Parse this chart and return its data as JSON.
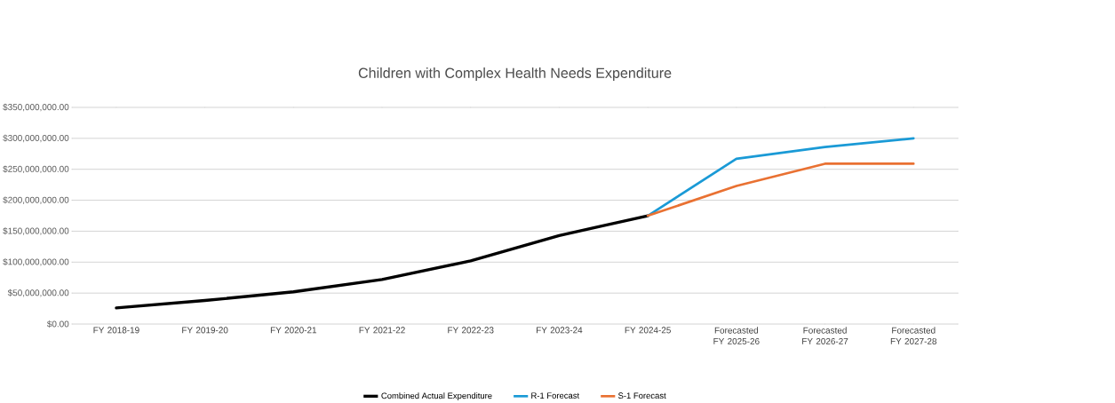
{
  "chart_data": {
    "type": "line",
    "title": "Children with Complex Health Needs Expenditure",
    "categories": [
      "FY 2018-19",
      "FY 2019-20",
      "FY 2020-21",
      "FY 2021-22",
      "FY 2022-23",
      "FY 2023-24",
      "FY 2024-25",
      "Forecasted FY 2025-26",
      "Forecasted FY 2026-27",
      "Forecasted FY 2027-28"
    ],
    "series": [
      {
        "name": "Combined Actual Expenditure",
        "color": "#000000",
        "values": [
          26000000,
          38000000,
          52000000,
          72000000,
          102000000,
          143000000,
          175000000,
          null,
          null,
          null
        ]
      },
      {
        "name": "R-1 Forecast",
        "color": "#1a9ad6",
        "values": [
          null,
          null,
          null,
          null,
          null,
          null,
          175000000,
          267000000,
          286000000,
          300000000
        ]
      },
      {
        "name": "S-1 Forecast",
        "color": "#e97132",
        "values": [
          null,
          null,
          null,
          null,
          null,
          null,
          175000000,
          223000000,
          259000000,
          259000000
        ]
      }
    ],
    "ylim": [
      0,
      350000000
    ],
    "yticks": [
      {
        "value": 0,
        "label": "$0.00"
      },
      {
        "value": 50000000,
        "label": "$50,000,000.00"
      },
      {
        "value": 100000000,
        "label": "$100,000,000.00"
      },
      {
        "value": 150000000,
        "label": "$150,000,000.00"
      },
      {
        "value": 200000000,
        "label": "$200,000,000.00"
      },
      {
        "value": 250000000,
        "label": "$250,000,000.00"
      },
      {
        "value": 300000000,
        "label": "$300,000,000.00"
      },
      {
        "value": 350000000,
        "label": "$350,000,000.00"
      }
    ],
    "grid": "y",
    "legend": "bottom",
    "marker": "none",
    "line_style": "solid"
  }
}
